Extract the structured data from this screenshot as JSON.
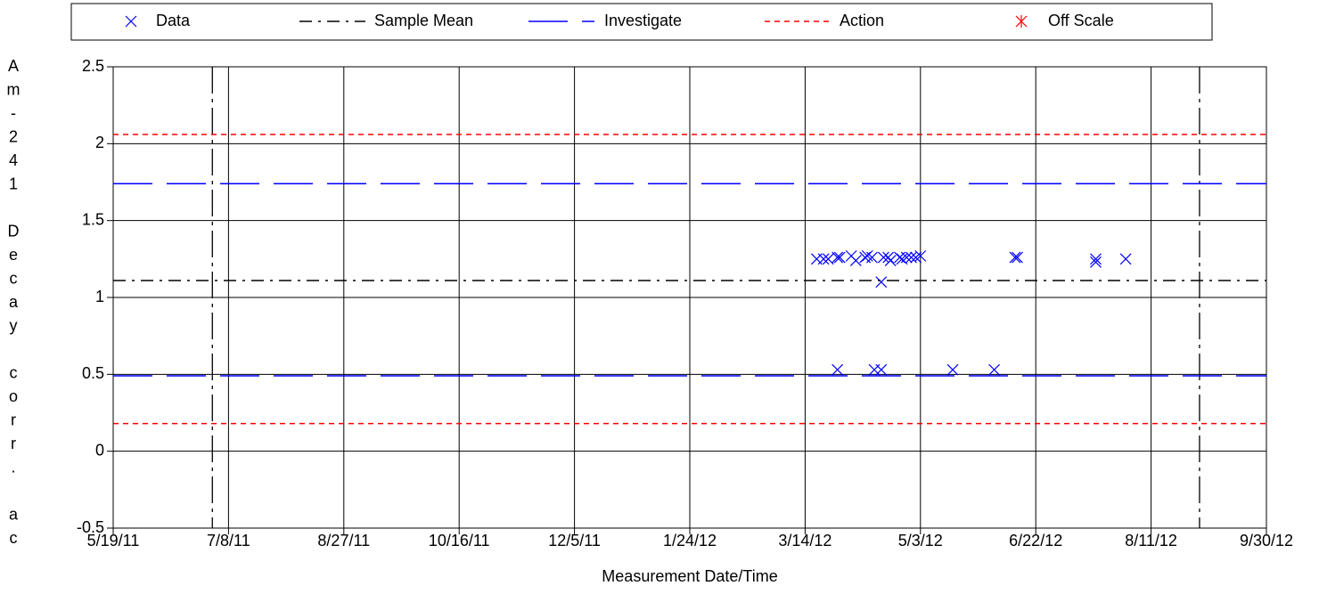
{
  "chart_data": {
    "type": "scatter",
    "ylabel": "Am-241 Decay corr. ac",
    "xlabel": "Measurement Date/Time",
    "ylim": [
      -0.5,
      2.5
    ],
    "yticks": [
      2.5,
      2,
      1.5,
      1,
      0.5,
      0,
      -0.5
    ],
    "xlim": [
      "2011-05-19",
      "2012-09-30"
    ],
    "xticks": [
      {
        "value": "2011-05-19",
        "label": "5/19/11"
      },
      {
        "value": "2011-07-08",
        "label": "7/8/11"
      },
      {
        "value": "2011-08-27",
        "label": "8/27/11"
      },
      {
        "value": "2011-10-16",
        "label": "10/16/11"
      },
      {
        "value": "2011-12-05",
        "label": "12/5/11"
      },
      {
        "value": "2012-01-24",
        "label": "1/24/12"
      },
      {
        "value": "2012-03-14",
        "label": "3/14/12"
      },
      {
        "value": "2012-05-03",
        "label": "5/3/12"
      },
      {
        "value": "2012-06-22",
        "label": "6/22/12"
      },
      {
        "value": "2012-08-11",
        "label": "8/11/12"
      },
      {
        "value": "2012-09-30",
        "label": "9/30/12"
      }
    ],
    "grid": true,
    "vlines": [
      "2011-07-01",
      "2012-09-01"
    ],
    "series": [
      {
        "name": "Data",
        "color": "#0000ff",
        "marker": "x",
        "x": [
          "2012-03-19",
          "2012-03-22",
          "2012-03-24",
          "2012-03-28",
          "2012-03-29",
          "2012-04-03",
          "2012-04-05",
          "2012-04-09",
          "2012-04-10",
          "2012-04-12",
          "2012-04-17",
          "2012-04-19",
          "2012-04-20",
          "2012-04-24",
          "2012-04-25",
          "2012-04-27",
          "2012-04-29",
          "2012-05-01",
          "2012-05-03",
          "2012-04-16",
          "2012-03-28",
          "2012-04-13",
          "2012-04-16",
          "2012-05-17",
          "2012-06-04",
          "2012-06-13",
          "2012-06-14",
          "2012-07-18",
          "2012-07-18",
          "2012-07-31"
        ],
        "values": [
          1.25,
          1.25,
          1.25,
          1.26,
          1.26,
          1.27,
          1.24,
          1.26,
          1.27,
          1.26,
          1.26,
          1.26,
          1.24,
          1.26,
          1.25,
          1.26,
          1.26,
          1.26,
          1.27,
          1.1,
          0.53,
          0.53,
          0.53,
          0.53,
          0.53,
          1.26,
          1.26,
          1.25,
          1.23,
          1.25
        ]
      },
      {
        "name": "Sample Mean",
        "color": "#000000",
        "style": "dashdot",
        "values": [
          1.11
        ]
      },
      {
        "name": "Investigate",
        "color": "#0000ff",
        "style": "longdash",
        "values": [
          1.74,
          0.49
        ]
      },
      {
        "name": "Action",
        "color": "#ff0000",
        "style": "dash",
        "values": [
          2.06,
          0.18
        ]
      },
      {
        "name": "Off Scale",
        "color": "#ff0000",
        "marker": "asterisk",
        "values": []
      }
    ]
  }
}
